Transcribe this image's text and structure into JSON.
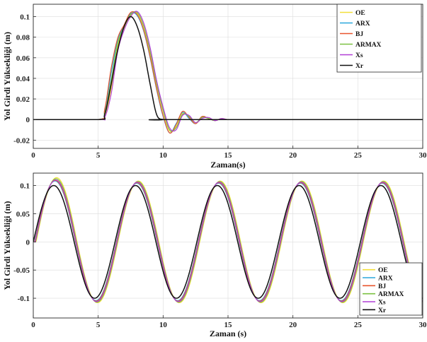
{
  "chart_data": [
    {
      "type": "line",
      "title": "",
      "xlabel": "Zaman(s)",
      "ylabel": "Yol Girdi Yüksekliği (m)",
      "xlim": [
        0,
        30
      ],
      "ylim": [
        -0.028,
        0.112
      ],
      "xticks": [
        0,
        5,
        10,
        15,
        20,
        25,
        30
      ],
      "yticks": [
        -0.02,
        0,
        0.02,
        0.04,
        0.06,
        0.08,
        0.1
      ],
      "ytick_labels": [
        "-0.02",
        "0",
        "0.02",
        "0.04",
        "0.06",
        "0.08",
        "0.1"
      ],
      "grid": true,
      "legend_position": "top-right",
      "series": [
        {
          "name": "OE",
          "color": "#f2df3a",
          "x": [
            0,
            5,
            5.5,
            6,
            6.5,
            7,
            7.5,
            8,
            8.5,
            9,
            9.5,
            10,
            10.5,
            11,
            11.5,
            12,
            12.5,
            13,
            13.5,
            14,
            14.5,
            15,
            16,
            17,
            18,
            30
          ],
          "y": [
            0,
            0,
            0.004,
            0.03,
            0.071,
            0.089,
            0.101,
            0.103,
            0.09,
            0.065,
            0.034,
            0.008,
            -0.011,
            -0.007,
            0.006,
            0.002,
            -0.004,
            0.002,
            0.001,
            -0.001,
            0.001,
            0,
            0,
            0,
            0,
            0
          ]
        },
        {
          "name": "ARX",
          "color": "#2aa7dc",
          "x": [
            0,
            5,
            5.5,
            6,
            6.5,
            7,
            7.5,
            8,
            8.5,
            9,
            9.5,
            10,
            10.5,
            11,
            11.5,
            12,
            12.5,
            13,
            13.5,
            14,
            14.5,
            15,
            16,
            17,
            18,
            30
          ],
          "y": [
            0,
            0,
            0.008,
            0.045,
            0.077,
            0.091,
            0.103,
            0.101,
            0.086,
            0.06,
            0.029,
            0.003,
            -0.013,
            -0.004,
            0.007,
            0.001,
            -0.004,
            0.003,
            0.001,
            -0.001,
            0.001,
            0,
            0,
            0,
            0,
            0
          ]
        },
        {
          "name": "BJ",
          "color": "#e8552e",
          "x": [
            0,
            5,
            5.5,
            6,
            6.5,
            7,
            7.5,
            8,
            8.5,
            9,
            9.5,
            10,
            10.5,
            11,
            11.5,
            12,
            12.5,
            13,
            13.5,
            14,
            14.5,
            15,
            16,
            17,
            18,
            30
          ],
          "y": [
            0,
            0,
            0.01,
            0.05,
            0.079,
            0.092,
            0.104,
            0.102,
            0.087,
            0.061,
            0.03,
            0.004,
            -0.013,
            -0.005,
            0.008,
            0.002,
            -0.004,
            0.003,
            0.001,
            -0.001,
            0.001,
            0,
            0,
            0,
            0,
            0
          ]
        },
        {
          "name": "ARMAX",
          "color": "#7cc142",
          "x": [
            0,
            5,
            5.5,
            6,
            6.5,
            7,
            7.5,
            8,
            8.5,
            9,
            9.5,
            10,
            10.5,
            11,
            11.5,
            12,
            12.5,
            13,
            13.5,
            14,
            14.5,
            15,
            16,
            17,
            18,
            30
          ],
          "y": [
            0,
            0,
            0.006,
            0.038,
            0.074,
            0.09,
            0.102,
            0.104,
            0.091,
            0.066,
            0.035,
            0.009,
            -0.01,
            -0.008,
            0.005,
            0.003,
            -0.003,
            0.002,
            0.001,
            -0.001,
            0.001,
            0,
            0,
            0,
            0,
            0
          ]
        },
        {
          "name": "Xs",
          "color": "#b13fd6",
          "x": [
            0,
            5,
            5.5,
            6,
            6.5,
            7,
            7.5,
            8,
            8.5,
            9,
            9.5,
            10,
            10.5,
            11,
            11.5,
            12,
            12.5,
            13,
            13.5,
            14,
            14.5,
            15,
            16,
            17,
            18,
            30
          ],
          "y": [
            0,
            0,
            0.002,
            0.025,
            0.066,
            0.087,
            0.1,
            0.105,
            0.094,
            0.07,
            0.038,
            0.012,
            -0.008,
            -0.01,
            0.004,
            0.004,
            -0.003,
            0.001,
            0.002,
            -0.001,
            0.001,
            0,
            0,
            0,
            0,
            0
          ]
        },
        {
          "name": "Xr",
          "color": "#111111",
          "x": [
            0,
            5,
            5.5,
            6,
            6.5,
            7,
            7.5,
            8,
            8.5,
            9,
            9.5,
            10,
            10.5,
            30
          ],
          "y": [
            0,
            0,
            0.0049,
            0.0345,
            0.0675,
            0.0905,
            0.1,
            0.0905,
            0.0675,
            0.0345,
            0.0049,
            0,
            0,
            0
          ]
        }
      ]
    },
    {
      "type": "line",
      "title": "",
      "xlabel": "Zaman (s)",
      "ylabel": "Yol Girdi Yüksekliği (m)",
      "xlim": [
        0,
        30
      ],
      "ylim": [
        -0.135,
        0.122
      ],
      "xticks": [
        0,
        5,
        10,
        15,
        20,
        25,
        30
      ],
      "yticks": [
        -0.1,
        -0.05,
        0,
        0.05,
        0.1
      ],
      "ytick_labels": [
        "-0.1",
        "-0.05",
        "0",
        "0.05",
        "0.1"
      ],
      "grid": true,
      "legend_position": "bottom-right",
      "signal": {
        "form": "sine",
        "amplitude": 0.1,
        "period": 6.3,
        "x_range": [
          0,
          30
        ]
      },
      "series": [
        {
          "name": "OE",
          "color": "#f2df3a",
          "amplitude": 0.108,
          "lag": 0.22,
          "peak_first": 0.114
        },
        {
          "name": "ARX",
          "color": "#2aa7dc",
          "amplitude": 0.104,
          "lag": 0.1,
          "peak_first": 0.108
        },
        {
          "name": "BJ",
          "color": "#e8552e",
          "amplitude": 0.105,
          "lag": 0.12,
          "peak_first": 0.109
        },
        {
          "name": "ARMAX",
          "color": "#7cc142",
          "amplitude": 0.107,
          "lag": 0.18,
          "peak_first": 0.112
        },
        {
          "name": "Xs",
          "color": "#b13fd6",
          "amplitude": 0.106,
          "lag": 0.15,
          "peak_first": 0.11
        },
        {
          "name": "Xr",
          "color": "#111111",
          "amplitude": 0.1,
          "lag": 0,
          "peak_first": 0.1
        }
      ]
    }
  ]
}
